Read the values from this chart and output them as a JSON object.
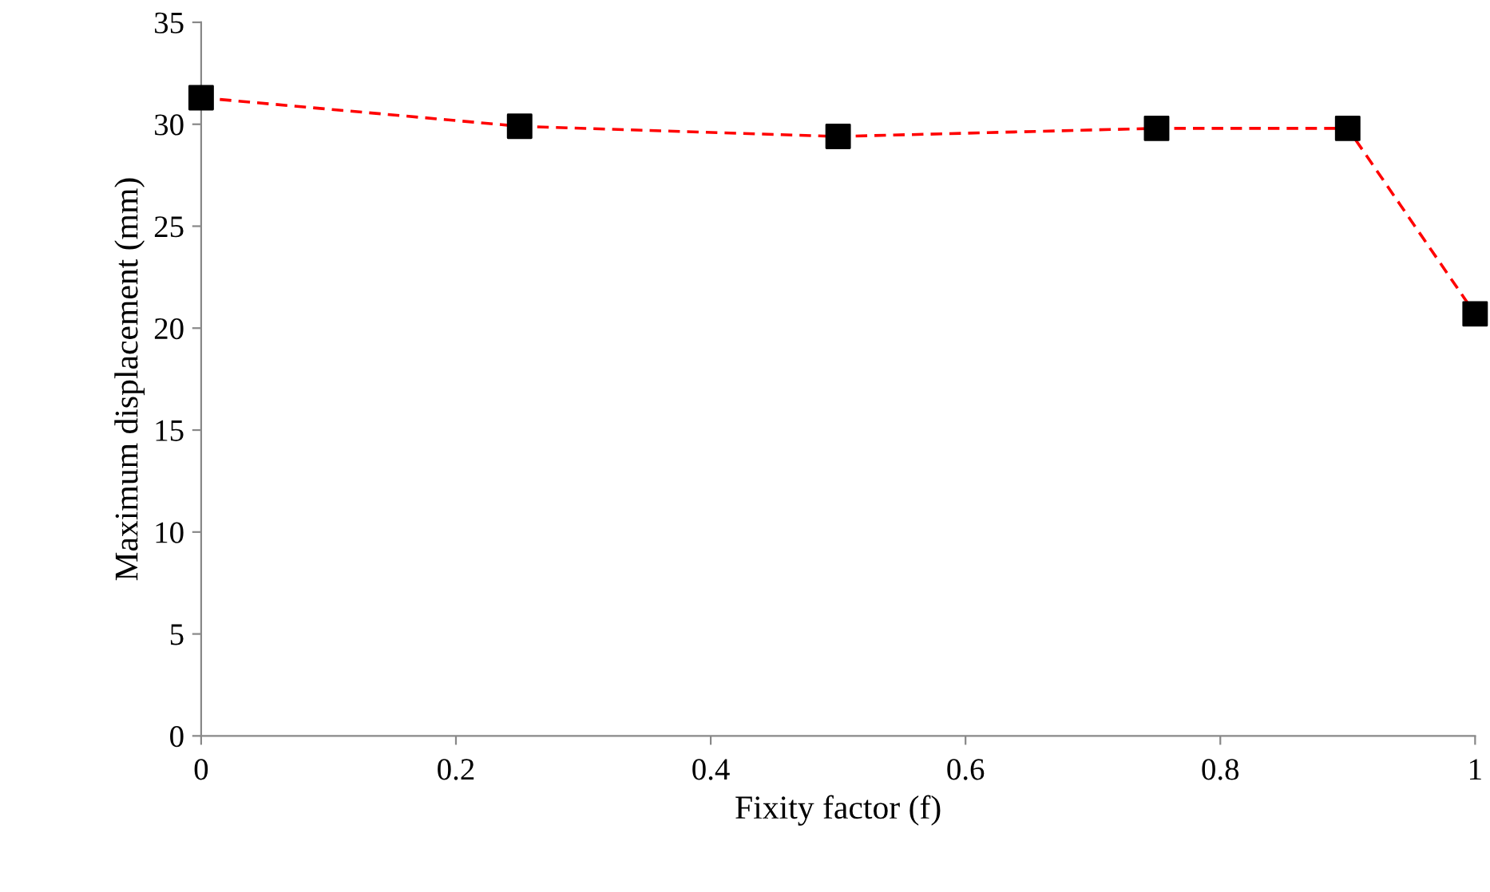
{
  "chart_data": {
    "type": "line",
    "xlabel": "Fixity factor (f)",
    "ylabel": "Maximum displacement (mm)",
    "x": [
      0,
      0.25,
      0.5,
      0.75,
      0.9,
      1
    ],
    "series": [
      {
        "color": "#ff0000",
        "line_style": "dashed",
        "marker": "none",
        "values": [
          31.3,
          29.9,
          29.4,
          29.8,
          29.8,
          20.7
        ]
      },
      {
        "type": "scatter",
        "color": "#000000",
        "marker": "square",
        "values": [
          31.3,
          29.9,
          29.4,
          29.8,
          29.8,
          20.7
        ]
      }
    ],
    "xlim": [
      0,
      1
    ],
    "ylim": [
      0,
      35
    ],
    "xticks": [
      0,
      0.2,
      0.4,
      0.6,
      0.8,
      1
    ],
    "yticks": [
      0,
      5,
      10,
      15,
      20,
      25,
      30,
      35
    ],
    "grid": false
  }
}
